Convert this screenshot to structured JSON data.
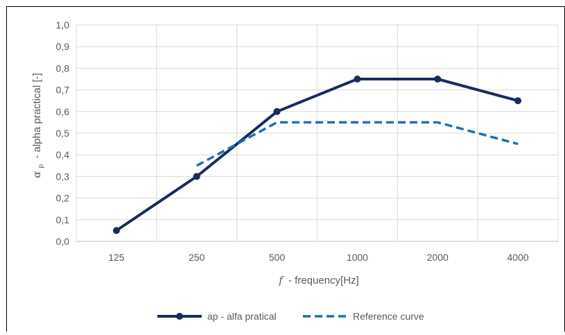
{
  "chart_data": {
    "type": "line",
    "title": "",
    "xlabel_symbol": "f",
    "xlabel": "- frequency[Hz]",
    "ylabel_symbol": "α",
    "ylabel_subscript": "p",
    "ylabel": "- alpha practical [-]",
    "categories": [
      "125",
      "250",
      "500",
      "1000",
      "2000",
      "4000"
    ],
    "y_ticks": [
      "0,0",
      "0,1",
      "0,2",
      "0,3",
      "0,4",
      "0,5",
      "0,6",
      "0,7",
      "0,8",
      "0,9",
      "1,0"
    ],
    "ylim": [
      0,
      1
    ],
    "grid": true,
    "legend_position": "bottom",
    "series": [
      {
        "name": "ap - alfa pratical",
        "values": [
          0.05,
          0.3,
          0.6,
          0.75,
          0.75,
          0.65
        ],
        "color": "#172B5E",
        "style": "solid-markers"
      },
      {
        "name": "Reference curve",
        "values": [
          null,
          0.35,
          0.55,
          0.55,
          0.55,
          0.45
        ],
        "color": "#1F6FB5",
        "style": "dashed"
      }
    ]
  }
}
